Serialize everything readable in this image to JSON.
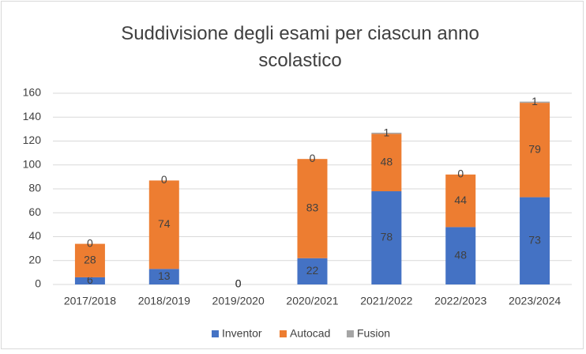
{
  "chart_data": {
    "type": "stacked_bar",
    "title": "Suddivisione degli esami per ciascun anno scolastico",
    "categories": [
      "2017/2018",
      "2018/2019",
      "2019/2020",
      "2020/2021",
      "2021/2022",
      "2022/2023",
      "2023/2024"
    ],
    "series": [
      {
        "name": "Inventor",
        "color": "#4472c4",
        "values": [
          6,
          13,
          0,
          22,
          78,
          48,
          73
        ]
      },
      {
        "name": "Autocad",
        "color": "#ed7d31",
        "values": [
          28,
          74,
          0,
          83,
          48,
          44,
          79
        ]
      },
      {
        "name": "Fusion",
        "color": "#a5a5a5",
        "values": [
          0,
          0,
          0,
          0,
          1,
          0,
          1
        ]
      }
    ],
    "ylim": [
      0,
      160
    ],
    "yticks": [
      0,
      20,
      40,
      60,
      80,
      100,
      120,
      140,
      160
    ],
    "grid": true,
    "legend": "bottom"
  }
}
